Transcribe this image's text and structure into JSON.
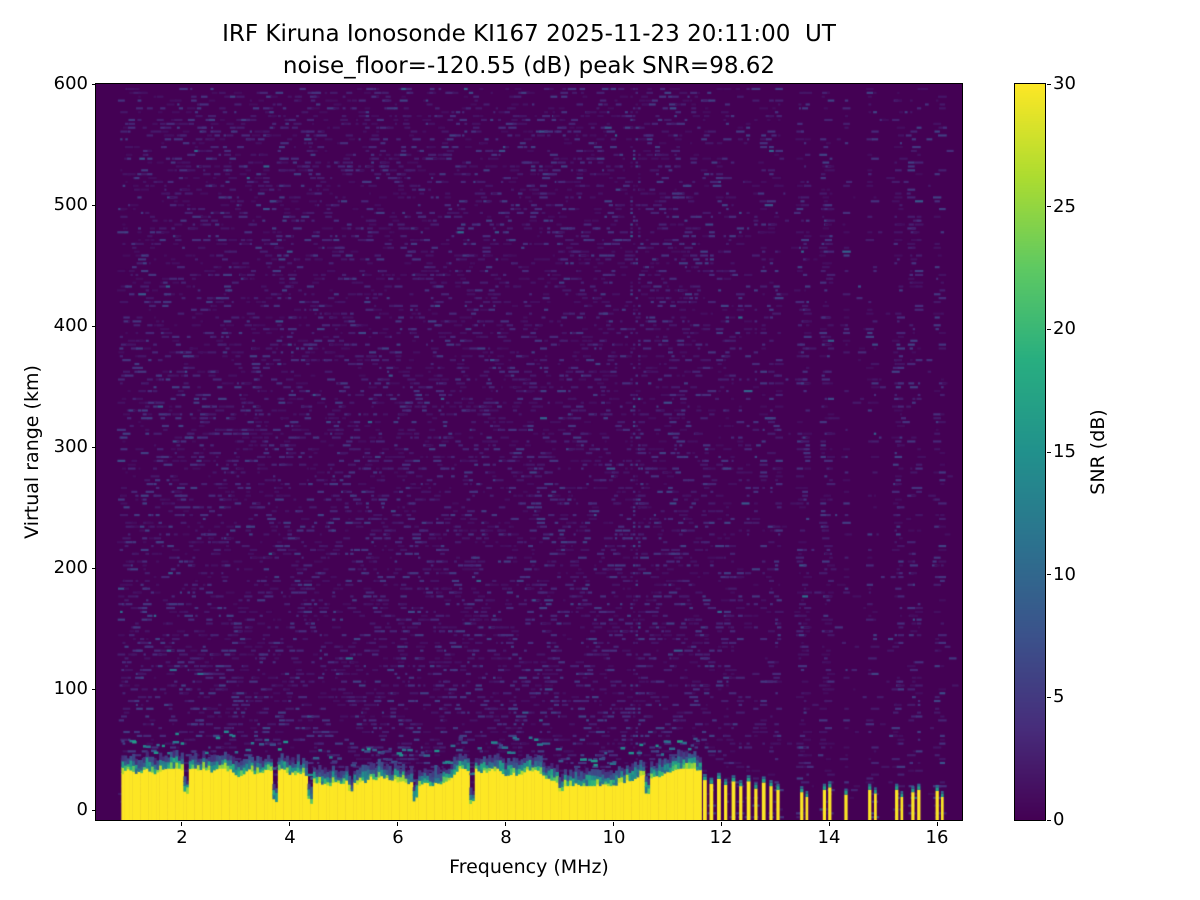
{
  "chart_data": {
    "type": "heatmap",
    "title": "IRF Kiruna Ionosonde KI167 2025-11-23 20:11:00  UT",
    "subtitle": "noise_floor=-120.55 (dB) peak SNR=98.62",
    "xlabel": "Frequency (MHz)",
    "ylabel": "Virtual range (km)",
    "xlim": [
      0.41,
      16.46
    ],
    "ylim": [
      -8,
      600
    ],
    "x_ticks": [
      2,
      4,
      6,
      8,
      10,
      12,
      14,
      16
    ],
    "y_ticks": [
      0,
      100,
      200,
      300,
      400,
      500,
      600
    ],
    "noise_floor_db": -120.55,
    "peak_snr_db": 98.62,
    "colorbar": {
      "label": "SNR (dB)",
      "min": 0,
      "max": 30,
      "ticks": [
        0,
        5,
        10,
        15,
        20,
        25,
        30
      ],
      "colormap": "viridis"
    },
    "viridis_stops": [
      [
        0.0,
        "#440154"
      ],
      [
        0.125,
        "#472d7b"
      ],
      [
        0.25,
        "#3b528b"
      ],
      [
        0.375,
        "#2c728e"
      ],
      [
        0.5,
        "#21918c"
      ],
      [
        0.625,
        "#28ae80"
      ],
      [
        0.75,
        "#5ec962"
      ],
      [
        0.875,
        "#addc30"
      ],
      [
        1.0,
        "#fde725"
      ]
    ],
    "features": {
      "data_start_mhz": 0.88,
      "background_value": 0,
      "noise": {
        "speckle_prob_left": 0.17,
        "speckle_prob_right": 0.012,
        "stripe_prob": 0.24,
        "stripe_half_width": 0.035,
        "row_step_km": 3.2,
        "col_step_mhz": 0.048
      },
      "hot_columns": [
        10.35,
        10.44
      ],
      "echo_band": {
        "start": 0.88,
        "end": 11.62,
        "top_km": 28,
        "jitter_km": 9,
        "deep_notches": [
          3.7,
          4.35,
          6.3,
          7.35
        ],
        "shallow_notches": [
          2.05,
          5.1,
          9.0,
          10.6
        ]
      },
      "bars": [
        [
          11.66,
          11.73,
          25
        ],
        [
          11.78,
          11.85,
          22
        ],
        [
          11.92,
          11.99,
          26
        ],
        [
          12.05,
          12.11,
          21
        ],
        [
          12.19,
          12.26,
          24
        ],
        [
          12.33,
          12.39,
          20
        ],
        [
          12.47,
          12.54,
          24
        ],
        [
          12.61,
          12.67,
          18
        ],
        [
          12.75,
          12.82,
          23
        ],
        [
          12.89,
          12.95,
          20
        ],
        [
          13.02,
          13.08,
          17
        ],
        [
          13.46,
          13.52,
          15
        ],
        [
          13.56,
          13.61,
          11
        ],
        [
          13.88,
          13.94,
          17
        ],
        [
          13.98,
          14.04,
          19
        ],
        [
          14.28,
          14.34,
          13
        ],
        [
          14.72,
          14.78,
          17
        ],
        [
          14.83,
          14.88,
          14
        ],
        [
          15.22,
          15.28,
          17
        ],
        [
          15.32,
          15.37,
          11
        ],
        [
          15.52,
          15.58,
          15
        ],
        [
          15.63,
          15.69,
          17
        ],
        [
          15.97,
          16.03,
          16
        ],
        [
          16.07,
          16.12,
          11
        ]
      ],
      "noise_stripes": [
        11.7,
        11.82,
        11.96,
        12.08,
        12.22,
        12.36,
        12.5,
        12.64,
        12.78,
        12.92,
        13.05,
        13.49,
        13.58,
        13.91,
        14.01,
        14.31,
        14.75,
        14.85,
        15.25,
        15.34,
        15.55,
        15.66,
        16.0,
        16.1
      ]
    }
  }
}
